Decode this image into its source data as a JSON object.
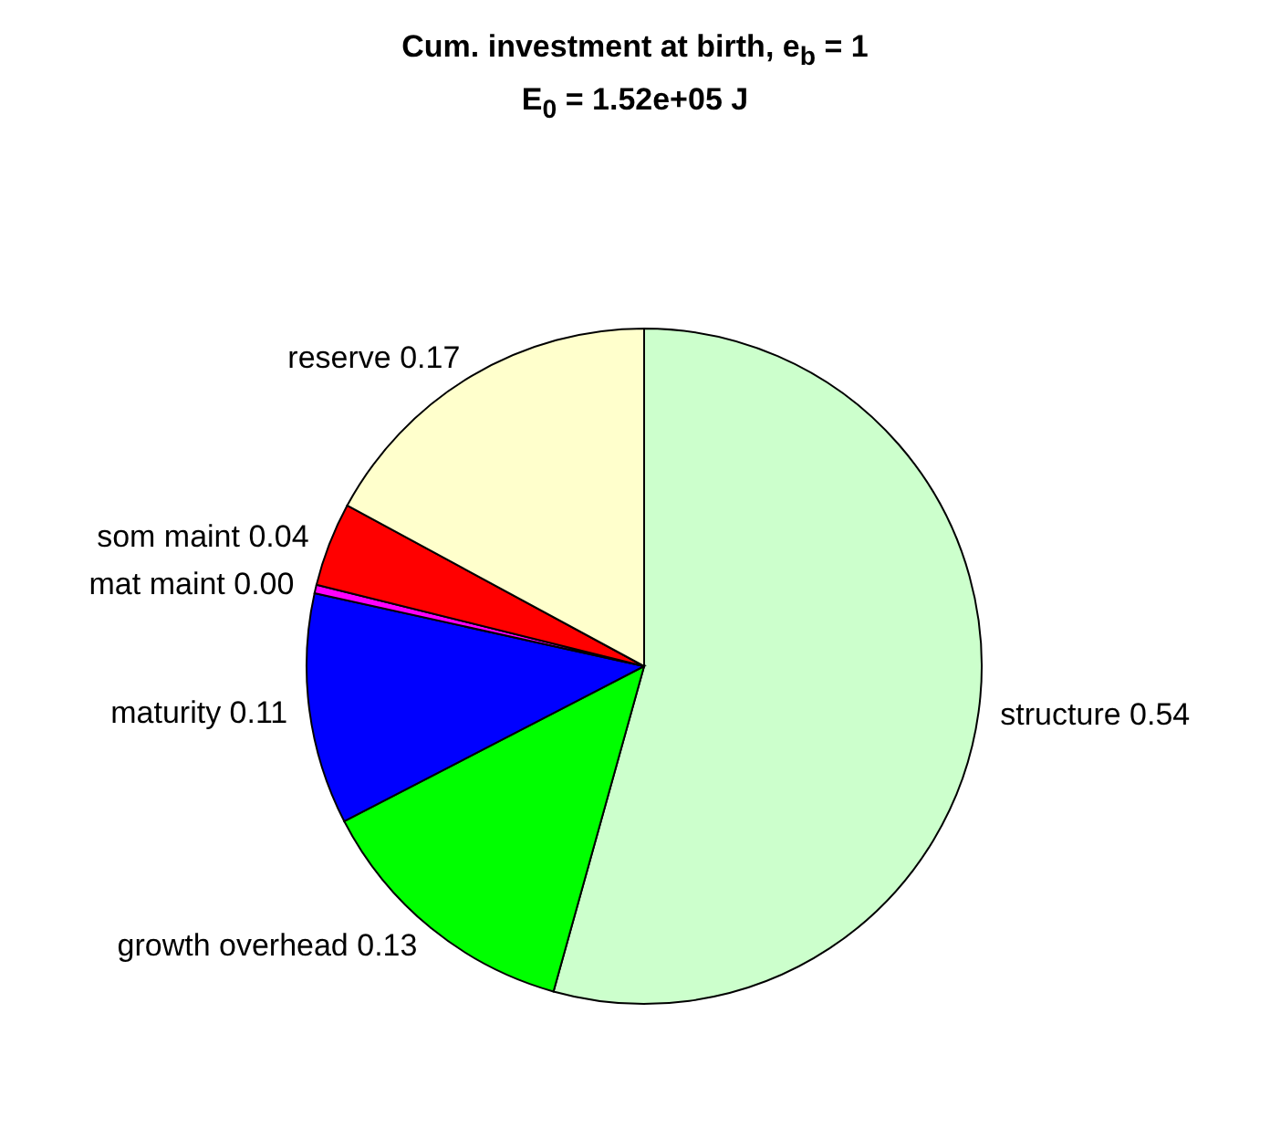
{
  "chart_data": {
    "type": "pie",
    "title": "Cum. investment at birth, e$_{b}$ = 1",
    "subtitle": "E$_{0}$ = 1.52e+05 J",
    "categories": [
      "structure",
      "growth overhead",
      "maturity",
      "mat maint",
      "som maint",
      "reserve"
    ],
    "values": [
      0.54,
      0.13,
      0.11,
      0.004,
      0.04,
      0.17
    ],
    "value_labels": [
      "0.54",
      "0.13",
      "0.11",
      "0.00",
      "0.04",
      "0.17"
    ],
    "colors": [
      "#ccffcc",
      "#00ff00",
      "#0000ff",
      "#ff00ff",
      "#ff0000",
      "#ffffcc"
    ],
    "legend": false
  }
}
